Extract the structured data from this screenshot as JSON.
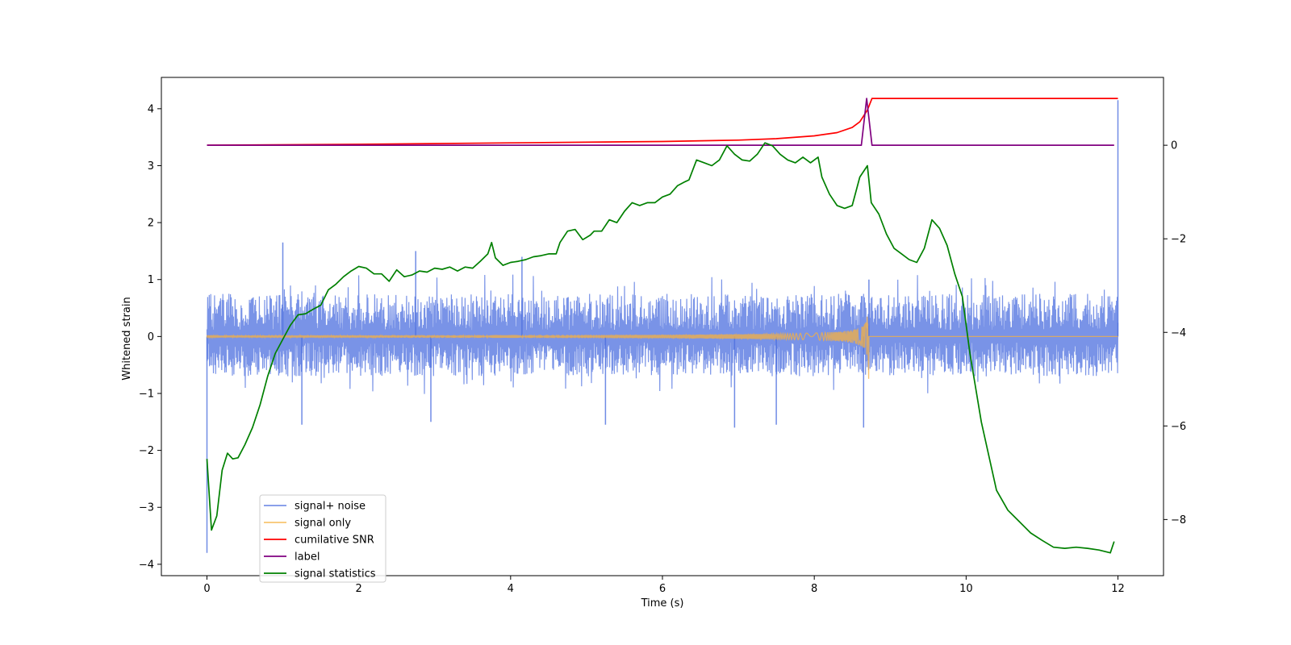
{
  "chart_data": {
    "type": "line",
    "xlabel": "Time (s)",
    "ylabel": "Whitened strain",
    "xlim": [
      -0.6,
      12.6
    ],
    "ylim": [
      -4.2,
      4.55
    ],
    "y2lim": [
      -9.2,
      1.45
    ],
    "x_ticks": [
      0,
      2,
      4,
      6,
      8,
      10,
      12
    ],
    "y_ticks": [
      -4,
      -3,
      -2,
      -1,
      0,
      1,
      2,
      3,
      4
    ],
    "y2_ticks": [
      -8,
      -6,
      -4,
      -2,
      0
    ],
    "legend_position": "lower-left",
    "series": [
      {
        "name": "signal+ noise",
        "color": "#4c6fdf",
        "axis": "left",
        "style": "noise",
        "x_range": [
          0,
          12
        ],
        "envelope_upper": 0.75,
        "envelope_lower": -0.7,
        "spikes": [
          [
            0,
            -3.8
          ],
          [
            1.0,
            1.65
          ],
          [
            1.25,
            -1.55
          ],
          [
            2.75,
            1.5
          ],
          [
            2.95,
            -1.5
          ],
          [
            4.15,
            1.4
          ],
          [
            5.25,
            -1.55
          ],
          [
            6.95,
            -1.6
          ],
          [
            7.5,
            -1.55
          ],
          [
            8.65,
            -1.6
          ],
          [
            8.72,
            1.0
          ],
          [
            12,
            4.15
          ]
        ]
      },
      {
        "name": "signal only",
        "color": "#f5b041",
        "axis": "left",
        "style": "chirp",
        "x_range": [
          0,
          12
        ],
        "merger_time": 8.72,
        "peak_amplitude": 0.95
      },
      {
        "name": "cumilative SNR",
        "color": "#ff0000",
        "axis": "right",
        "points": [
          [
            0,
            0.0
          ],
          [
            2,
            0.02
          ],
          [
            4,
            0.05
          ],
          [
            6,
            0.08
          ],
          [
            7,
            0.11
          ],
          [
            7.5,
            0.14
          ],
          [
            8.0,
            0.2
          ],
          [
            8.3,
            0.27
          ],
          [
            8.5,
            0.38
          ],
          [
            8.6,
            0.5
          ],
          [
            8.7,
            0.75
          ],
          [
            8.76,
            1.0
          ],
          [
            12,
            1.0
          ]
        ]
      },
      {
        "name": "label",
        "color": "#800080",
        "axis": "right",
        "points": [
          [
            0,
            0
          ],
          [
            8.62,
            0
          ],
          [
            8.69,
            1.0
          ],
          [
            8.76,
            0
          ],
          [
            11.95,
            0
          ]
        ]
      },
      {
        "name": "signal statistics",
        "color": "#008000",
        "axis": "left",
        "points": [
          [
            0,
            -2.15
          ],
          [
            0.06,
            -3.4
          ],
          [
            0.13,
            -3.15
          ],
          [
            0.2,
            -2.35
          ],
          [
            0.27,
            -2.05
          ],
          [
            0.34,
            -2.15
          ],
          [
            0.41,
            -2.13
          ],
          [
            0.5,
            -1.9
          ],
          [
            0.6,
            -1.6
          ],
          [
            0.7,
            -1.2
          ],
          [
            0.8,
            -0.7
          ],
          [
            0.9,
            -0.3
          ],
          [
            1.0,
            -0.05
          ],
          [
            1.1,
            0.2
          ],
          [
            1.2,
            0.38
          ],
          [
            1.3,
            0.4
          ],
          [
            1.4,
            0.48
          ],
          [
            1.5,
            0.55
          ],
          [
            1.6,
            0.82
          ],
          [
            1.7,
            0.92
          ],
          [
            1.8,
            1.05
          ],
          [
            1.9,
            1.15
          ],
          [
            2.0,
            1.23
          ],
          [
            2.1,
            1.2
          ],
          [
            2.2,
            1.1
          ],
          [
            2.3,
            1.1
          ],
          [
            2.4,
            0.97
          ],
          [
            2.5,
            1.17
          ],
          [
            2.6,
            1.05
          ],
          [
            2.7,
            1.08
          ],
          [
            2.8,
            1.15
          ],
          [
            2.9,
            1.13
          ],
          [
            3.0,
            1.2
          ],
          [
            3.1,
            1.18
          ],
          [
            3.2,
            1.22
          ],
          [
            3.3,
            1.15
          ],
          [
            3.4,
            1.22
          ],
          [
            3.5,
            1.2
          ],
          [
            3.6,
            1.32
          ],
          [
            3.7,
            1.45
          ],
          [
            3.75,
            1.65
          ],
          [
            3.8,
            1.38
          ],
          [
            3.9,
            1.25
          ],
          [
            4.0,
            1.3
          ],
          [
            4.1,
            1.32
          ],
          [
            4.2,
            1.35
          ],
          [
            4.3,
            1.4
          ],
          [
            4.4,
            1.42
          ],
          [
            4.5,
            1.45
          ],
          [
            4.6,
            1.45
          ],
          [
            4.65,
            1.65
          ],
          [
            4.75,
            1.85
          ],
          [
            4.85,
            1.88
          ],
          [
            4.95,
            1.7
          ],
          [
            5.05,
            1.78
          ],
          [
            5.1,
            1.85
          ],
          [
            5.2,
            1.85
          ],
          [
            5.3,
            2.05
          ],
          [
            5.4,
            2.0
          ],
          [
            5.5,
            2.2
          ],
          [
            5.6,
            2.35
          ],
          [
            5.7,
            2.3
          ],
          [
            5.8,
            2.35
          ],
          [
            5.9,
            2.35
          ],
          [
            6.0,
            2.45
          ],
          [
            6.1,
            2.5
          ],
          [
            6.2,
            2.65
          ],
          [
            6.3,
            2.72
          ],
          [
            6.35,
            2.75
          ],
          [
            6.45,
            3.1
          ],
          [
            6.55,
            3.05
          ],
          [
            6.65,
            3.0
          ],
          [
            6.75,
            3.1
          ],
          [
            6.85,
            3.35
          ],
          [
            6.95,
            3.2
          ],
          [
            7.05,
            3.1
          ],
          [
            7.15,
            3.08
          ],
          [
            7.25,
            3.2
          ],
          [
            7.35,
            3.4
          ],
          [
            7.45,
            3.35
          ],
          [
            7.55,
            3.2
          ],
          [
            7.65,
            3.1
          ],
          [
            7.75,
            3.05
          ],
          [
            7.85,
            3.15
          ],
          [
            7.95,
            3.05
          ],
          [
            8.05,
            3.15
          ],
          [
            8.1,
            2.8
          ],
          [
            8.2,
            2.5
          ],
          [
            8.3,
            2.3
          ],
          [
            8.4,
            2.25
          ],
          [
            8.5,
            2.3
          ],
          [
            8.6,
            2.8
          ],
          [
            8.7,
            3.0
          ],
          [
            8.75,
            2.35
          ],
          [
            8.85,
            2.15
          ],
          [
            8.95,
            1.8
          ],
          [
            9.05,
            1.55
          ],
          [
            9.15,
            1.45
          ],
          [
            9.25,
            1.35
          ],
          [
            9.35,
            1.3
          ],
          [
            9.45,
            1.55
          ],
          [
            9.55,
            2.05
          ],
          [
            9.65,
            1.9
          ],
          [
            9.75,
            1.6
          ],
          [
            9.85,
            1.1
          ],
          [
            9.95,
            0.7
          ],
          [
            10.05,
            -0.3
          ],
          [
            10.2,
            -1.5
          ],
          [
            10.4,
            -2.7
          ],
          [
            10.55,
            -3.05
          ],
          [
            10.7,
            -3.25
          ],
          [
            10.85,
            -3.45
          ],
          [
            11.0,
            -3.58
          ],
          [
            11.15,
            -3.7
          ],
          [
            11.3,
            -3.72
          ],
          [
            11.45,
            -3.7
          ],
          [
            11.6,
            -3.72
          ],
          [
            11.75,
            -3.75
          ],
          [
            11.9,
            -3.8
          ],
          [
            11.95,
            -3.6
          ]
        ]
      }
    ]
  }
}
